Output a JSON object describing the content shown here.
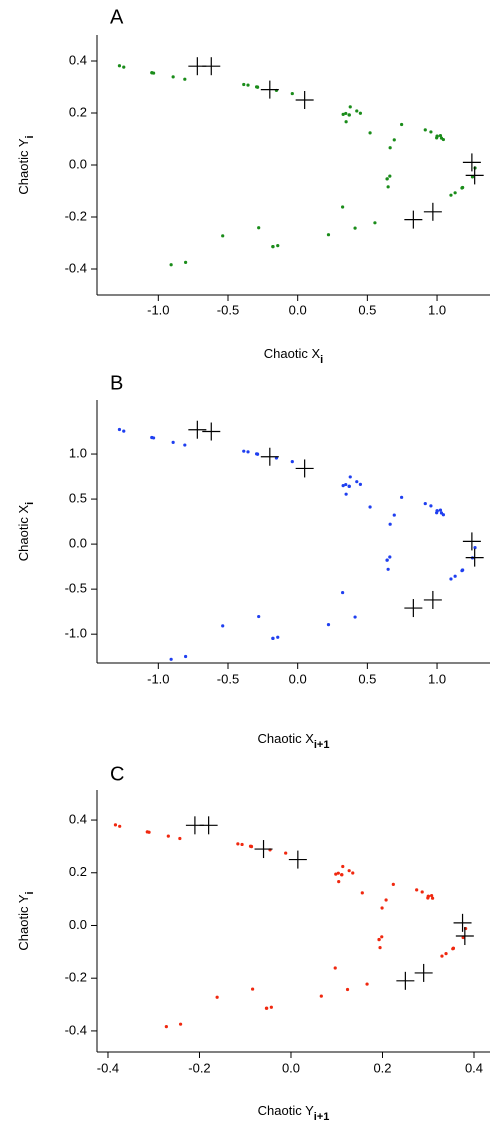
{
  "chart_data": [
    {
      "type": "scatter",
      "title": "A",
      "x_label": "Chaotic X",
      "x_label_sub": "i",
      "y_label": "Chaotic Y",
      "y_label_sub": "i",
      "xlim": [
        -1.44,
        1.38
      ],
      "ylim": [
        -0.5,
        0.5
      ],
      "xticks": [
        {
          "value": -1,
          "label": "-1.0"
        },
        -0.5,
        {
          "value": 0,
          "label": "0.0"
        },
        0.5,
        {
          "value": 1,
          "label": "1.0"
        }
      ],
      "yticks": [
        -0.4,
        -0.2,
        {
          "value": 0,
          "label": "0.0"
        },
        0.2,
        0.4
      ],
      "series": [
        {
          "color": "#1a8c1a",
          "marker": "dot",
          "x": [
            0.5543,
            0.3476,
            0.9971,
            -0.2876,
            1.1833,
            -1.0466,
            -0.1786,
            0.6413,
            0.3706,
            1.0001,
            -0.2891,
            1.183,
            -1.046,
            -0.1769,
            0.6424,
            0.3691,
            1.002,
            -0.2949,
            1.1788,
            -1.0339,
            -0.143,
            0.6612,
            0.345,
            1.0318,
            -0.3869,
            1.0999,
            -0.8098,
            0.4119,
            0.5195,
            0.7458,
            0.3772,
            1.0245,
            -0.3563,
            1.1297,
            -0.8936,
            0.221,
            0.6635,
            0.45,
            0.9156,
            -0.0386,
            1.2726,
            -1.2789,
            -0.908,
            -0.538,
            0.3224,
            0.6931,
            0.4241,
            0.9561,
            -0.1525,
            1.2542,
            -1.248,
            -0.8042,
            -0.2798,
            0.6491,
            0.3263,
            1.0456
          ],
          "values": [
            -0.2223,
            0.1663,
            0.1043,
            0.2991,
            -0.0863,
            0.355,
            -0.314,
            -0.0536,
            0.1924,
            0.1112,
            0.3,
            -0.0867,
            0.3549,
            -0.3138,
            -0.0531,
            0.1927,
            0.1107,
            0.3006,
            -0.0885,
            0.3536,
            -0.3102,
            -0.0429,
            0.1984,
            0.1035,
            0.3095,
            -0.1161,
            0.33,
            -0.2429,
            0.1236,
            0.1559,
            0.2237,
            0.1132,
            0.3074,
            -0.1069,
            0.3389,
            -0.2681,
            0.0663,
            0.1991,
            0.135,
            0.2747,
            -0.0116,
            0.3818,
            -0.3837,
            -0.2724,
            -0.1614,
            0.0967,
            0.2079,
            0.1272,
            0.2868,
            -0.0458,
            0.3763,
            -0.3744,
            -0.2413,
            -0.0839,
            0.1947,
            0.0979
          ]
        },
        {
          "color": "#000000",
          "marker": "plus",
          "x": [
            -0.72,
            -0.62,
            -0.2,
            0.05,
            1.25,
            1.27,
            0.83,
            0.97
          ],
          "values": [
            0.38,
            0.38,
            0.29,
            0.25,
            0.01,
            -0.04,
            -0.21,
            -0.18
          ]
        }
      ]
    },
    {
      "type": "scatter",
      "title": "B",
      "x_label": "Chaotic X",
      "x_label_sub": "i+1",
      "y_label": "Chaotic X",
      "y_label_sub": "i",
      "xlim": [
        -1.44,
        1.38
      ],
      "ylim": [
        -1.32,
        1.6
      ],
      "xticks": [
        {
          "value": -1,
          "label": "-1.0"
        },
        -0.5,
        {
          "value": 0,
          "label": "0.0"
        },
        0.5,
        {
          "value": 1,
          "label": "1.0"
        }
      ],
      "yticks": [
        {
          "value": -1,
          "label": "-1.0"
        },
        -0.5,
        {
          "value": 0,
          "label": "0.0"
        },
        0.5,
        {
          "value": 1,
          "label": "1.0"
        }
      ],
      "series": [
        {
          "color": "#1f3ff0",
          "marker": "dot",
          "x": [
            0.3476,
            0.9971,
            -0.2876,
            1.1833,
            -1.0466,
            -0.1786,
            0.6413,
            0.3706,
            1.0001,
            -0.2891,
            1.183,
            -1.046,
            -0.1769,
            0.6424,
            0.3691,
            1.002,
            -0.2949,
            1.1788,
            -1.0339,
            -0.143,
            0.6612,
            0.345,
            1.0318,
            -0.3869,
            1.0999,
            -0.8098,
            0.4119,
            0.5195,
            0.7458,
            0.3772,
            1.0245,
            -0.3563,
            1.1297,
            -0.8936,
            0.221,
            0.6635,
            0.45,
            0.9156,
            -0.0386,
            1.2726,
            -1.2789,
            -0.908,
            -0.538,
            0.3224,
            0.6931,
            0.4241,
            0.9561,
            -0.1525,
            1.2542,
            -1.248,
            -0.8042,
            -0.2798,
            0.6491,
            0.3263,
            1.0456
          ],
          "values": [
            0.5543,
            0.3476,
            0.9971,
            -0.2876,
            1.1833,
            -1.0466,
            -0.1786,
            0.6413,
            0.3706,
            1.0001,
            -0.2891,
            1.183,
            -1.046,
            -0.1769,
            0.6424,
            0.3691,
            1.002,
            -0.2949,
            1.1788,
            -1.0339,
            -0.143,
            0.6612,
            0.345,
            1.0318,
            -0.3869,
            1.0999,
            -0.8098,
            0.4119,
            0.5195,
            0.7458,
            0.3772,
            1.0245,
            -0.3563,
            1.1297,
            -0.8936,
            0.221,
            0.6635,
            0.45,
            0.9156,
            -0.0386,
            1.2726,
            -1.2789,
            -0.908,
            -0.538,
            0.3224,
            0.6931,
            0.4241,
            0.9561,
            -0.1525,
            1.2542,
            -1.248,
            -0.8042,
            -0.2798,
            0.6491,
            0.3263
          ]
        },
        {
          "color": "#000000",
          "marker": "plus",
          "x": [
            -0.72,
            -0.62,
            -0.2,
            0.05,
            1.25,
            1.27,
            0.83,
            0.97
          ],
          "values": [
            1.27,
            1.25,
            0.97,
            0.84,
            0.03,
            -0.15,
            -0.71,
            -0.62
          ]
        }
      ]
    },
    {
      "type": "scatter",
      "title": "C",
      "x_label": "Chaotic Y",
      "x_label_sub": "i+1",
      "y_label": "Chaotic Y",
      "y_label_sub": "i",
      "xlim": [
        -0.424,
        0.435
      ],
      "ylim": [
        -0.48,
        0.514
      ],
      "xticks": [
        -0.4,
        -0.2,
        {
          "value": 0,
          "label": "0.0"
        },
        0.2,
        0.4
      ],
      "yticks": [
        -0.4,
        -0.2,
        {
          "value": 0,
          "label": "0.0"
        },
        0.2,
        0.4
      ],
      "series": [
        {
          "color": "#f0280f",
          "marker": "dot",
          "x": [
            0.1663,
            0.1043,
            0.2991,
            -0.0863,
            0.355,
            -0.314,
            -0.0536,
            0.1924,
            0.1112,
            0.3,
            -0.0867,
            0.3549,
            -0.3138,
            -0.0531,
            0.1927,
            0.1107,
            0.3006,
            -0.0885,
            0.3536,
            -0.3102,
            -0.0429,
            0.1984,
            0.1035,
            0.3095,
            -0.1161,
            0.33,
            -0.2429,
            0.1236,
            0.1559,
            0.2237,
            0.1132,
            0.3074,
            -0.1069,
            0.3389,
            -0.2681,
            0.0663,
            0.1991,
            0.135,
            0.2747,
            -0.0116,
            0.3818,
            -0.3837,
            -0.2724,
            -0.1614,
            0.0967,
            0.2079,
            0.1272,
            0.2868,
            -0.0458,
            0.3763,
            -0.3744,
            -0.2413,
            -0.0839,
            0.1947,
            0.0979
          ],
          "values": [
            -0.2223,
            0.1663,
            0.1043,
            0.2991,
            -0.0863,
            0.355,
            -0.314,
            -0.0536,
            0.1924,
            0.1112,
            0.3,
            -0.0867,
            0.3549,
            -0.3138,
            -0.0531,
            0.1927,
            0.1107,
            0.3006,
            -0.0885,
            0.3536,
            -0.3102,
            -0.0429,
            0.1984,
            0.1035,
            0.3095,
            -0.1161,
            0.33,
            -0.2429,
            0.1236,
            0.1559,
            0.2237,
            0.1132,
            0.3074,
            -0.1069,
            0.3389,
            -0.2681,
            0.0663,
            0.1991,
            0.135,
            0.2747,
            -0.0116,
            0.3818,
            -0.3837,
            -0.2724,
            -0.1614,
            0.0967,
            0.2079,
            0.1272,
            0.2868,
            -0.0458,
            0.3763,
            -0.3744,
            -0.2413,
            -0.0839,
            0.1947
          ]
        },
        {
          "color": "#000000",
          "marker": "plus",
          "x": [
            -0.21,
            -0.18,
            -0.06,
            0.015,
            0.375,
            0.38,
            0.25,
            0.29
          ],
          "values": [
            0.38,
            0.38,
            0.29,
            0.25,
            0.01,
            -0.04,
            -0.21,
            -0.18
          ]
        }
      ]
    }
  ]
}
